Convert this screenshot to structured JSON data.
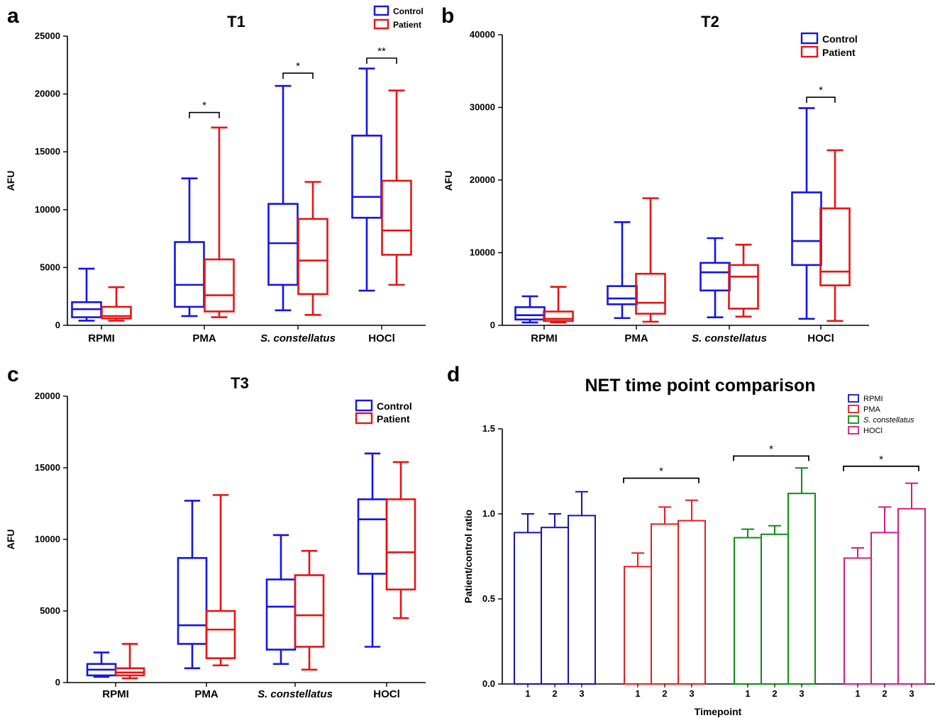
{
  "chart_data": [
    {
      "panel": "a",
      "type": "box",
      "title": "T1",
      "ylabel": "AFU",
      "ylim": [
        0,
        25000
      ],
      "yticks": [
        "0",
        "5000",
        "10000",
        "15000",
        "20000",
        "25000"
      ],
      "categories": [
        "RPMI",
        "PMA",
        "S. constellatus",
        "HOCl"
      ],
      "legend": [
        "Control",
        "Patient"
      ],
      "series": [
        {
          "name": "Control",
          "color": "#1414e6",
          "boxes": [
            {
              "min": 400,
              "q1": 700,
              "median": 1400,
              "q3": 2000,
              "max": 4900
            },
            {
              "min": 800,
              "q1": 1600,
              "median": 3500,
              "q3": 7200,
              "max": 12700
            },
            {
              "min": 1300,
              "q1": 3500,
              "median": 7100,
              "q3": 10500,
              "max": 20700
            },
            {
              "min": 3000,
              "q1": 9300,
              "median": 11100,
              "q3": 16400,
              "max": 22200
            }
          ]
        },
        {
          "name": "Patient",
          "color": "#e61414",
          "boxes": [
            {
              "min": 400,
              "q1": 600,
              "median": 800,
              "q3": 1600,
              "max": 3300
            },
            {
              "min": 700,
              "q1": 1200,
              "median": 2600,
              "q3": 5700,
              "max": 17100
            },
            {
              "min": 900,
              "q1": 2700,
              "median": 5600,
              "q3": 9200,
              "max": 12400
            },
            {
              "min": 3500,
              "q1": 6100,
              "median": 8200,
              "q3": 12500,
              "max": 20300
            }
          ]
        }
      ],
      "significance": [
        {
          "category": 1,
          "label": "*",
          "y": 18400
        },
        {
          "category": 2,
          "label": "*",
          "y": 21800
        },
        {
          "category": 3,
          "label": "**",
          "y": 23100
        }
      ]
    },
    {
      "panel": "b",
      "type": "box",
      "title": "T2",
      "ylabel": "AFU",
      "ylim": [
        0,
        40000
      ],
      "yticks": [
        "0",
        "10000",
        "20000",
        "30000",
        "40000"
      ],
      "categories": [
        "RPMI",
        "PMA",
        "S. constellatus",
        "HOCl"
      ],
      "legend": [
        "Control",
        "Patient"
      ],
      "series": [
        {
          "name": "Control",
          "color": "#1414e6",
          "boxes": [
            {
              "min": 400,
              "q1": 800,
              "median": 1400,
              "q3": 2500,
              "max": 4000
            },
            {
              "min": 1000,
              "q1": 2900,
              "median": 3700,
              "q3": 5400,
              "max": 14200
            },
            {
              "min": 1100,
              "q1": 4800,
              "median": 7300,
              "q3": 8600,
              "max": 12000
            },
            {
              "min": 900,
              "q1": 8300,
              "median": 11600,
              "q3": 18300,
              "max": 29900
            }
          ]
        },
        {
          "name": "Patient",
          "color": "#e61414",
          "boxes": [
            {
              "min": 400,
              "q1": 600,
              "median": 900,
              "q3": 1900,
              "max": 5300
            },
            {
              "min": 500,
              "q1": 1600,
              "median": 3100,
              "q3": 7100,
              "max": 17500
            },
            {
              "min": 1200,
              "q1": 2300,
              "median": 6700,
              "q3": 8300,
              "max": 11100
            },
            {
              "min": 600,
              "q1": 5500,
              "median": 7400,
              "q3": 16100,
              "max": 24100
            }
          ]
        }
      ],
      "significance": [
        {
          "category": 3,
          "label": "*",
          "y": 31400
        }
      ]
    },
    {
      "panel": "c",
      "type": "box",
      "title": "T3",
      "ylabel": "AFU",
      "ylim": [
        0,
        20000
      ],
      "yticks": [
        "0",
        "5000",
        "10000",
        "15000",
        "20000"
      ],
      "categories": [
        "RPMI",
        "PMA",
        "S. constellatus",
        "HOCl"
      ],
      "legend": [
        "Control",
        "Patient"
      ],
      "series": [
        {
          "name": "Control",
          "color": "#1414e6",
          "boxes": [
            {
              "min": 400,
              "q1": 500,
              "median": 900,
              "q3": 1300,
              "max": 2100
            },
            {
              "min": 1000,
              "q1": 2700,
              "median": 4000,
              "q3": 8700,
              "max": 12700
            },
            {
              "min": 1300,
              "q1": 2300,
              "median": 5300,
              "q3": 7200,
              "max": 10300
            },
            {
              "min": 2500,
              "q1": 7600,
              "median": 11400,
              "q3": 12800,
              "max": 16000
            }
          ]
        },
        {
          "name": "Patient",
          "color": "#e61414",
          "boxes": [
            {
              "min": 300,
              "q1": 500,
              "median": 700,
              "q3": 1000,
              "max": 2700
            },
            {
              "min": 1200,
              "q1": 1700,
              "median": 3700,
              "q3": 5000,
              "max": 13100
            },
            {
              "min": 900,
              "q1": 2500,
              "median": 4700,
              "q3": 7500,
              "max": 9200
            },
            {
              "min": 4500,
              "q1": 6500,
              "median": 9100,
              "q3": 12800,
              "max": 15400
            }
          ]
        }
      ],
      "significance": []
    },
    {
      "panel": "d",
      "type": "bar",
      "title": "NET time point comparison",
      "xlabel": "Timepoint",
      "ylabel": "Patient/control ratio",
      "ylim": [
        0.0,
        1.5
      ],
      "yticks": [
        "0.0",
        "0.5",
        "1.0",
        "1.5"
      ],
      "categories": [
        "1",
        "2",
        "3"
      ],
      "series": [
        {
          "name": "RPMI",
          "color": "#1414b4",
          "values": [
            0.89,
            0.92,
            0.99
          ],
          "errors": [
            0.11,
            0.08,
            0.14
          ]
        },
        {
          "name": "PMA",
          "color": "#e61e1e",
          "values": [
            0.69,
            0.94,
            0.96
          ],
          "errors": [
            0.08,
            0.1,
            0.12
          ]
        },
        {
          "name": "S. constellatus",
          "color": "#0f8c14",
          "values": [
            0.86,
            0.88,
            1.12
          ],
          "errors": [
            0.05,
            0.05,
            0.15
          ]
        },
        {
          "name": "HOCl",
          "color": "#d21e82",
          "values": [
            0.74,
            0.89,
            1.03
          ],
          "errors": [
            0.06,
            0.15,
            0.15
          ]
        }
      ],
      "significance": [
        {
          "series": 1,
          "label": "*",
          "y": 1.21
        },
        {
          "series": 2,
          "label": "*",
          "y": 1.34
        },
        {
          "series": 3,
          "label": "*",
          "y": 1.28
        }
      ]
    }
  ]
}
